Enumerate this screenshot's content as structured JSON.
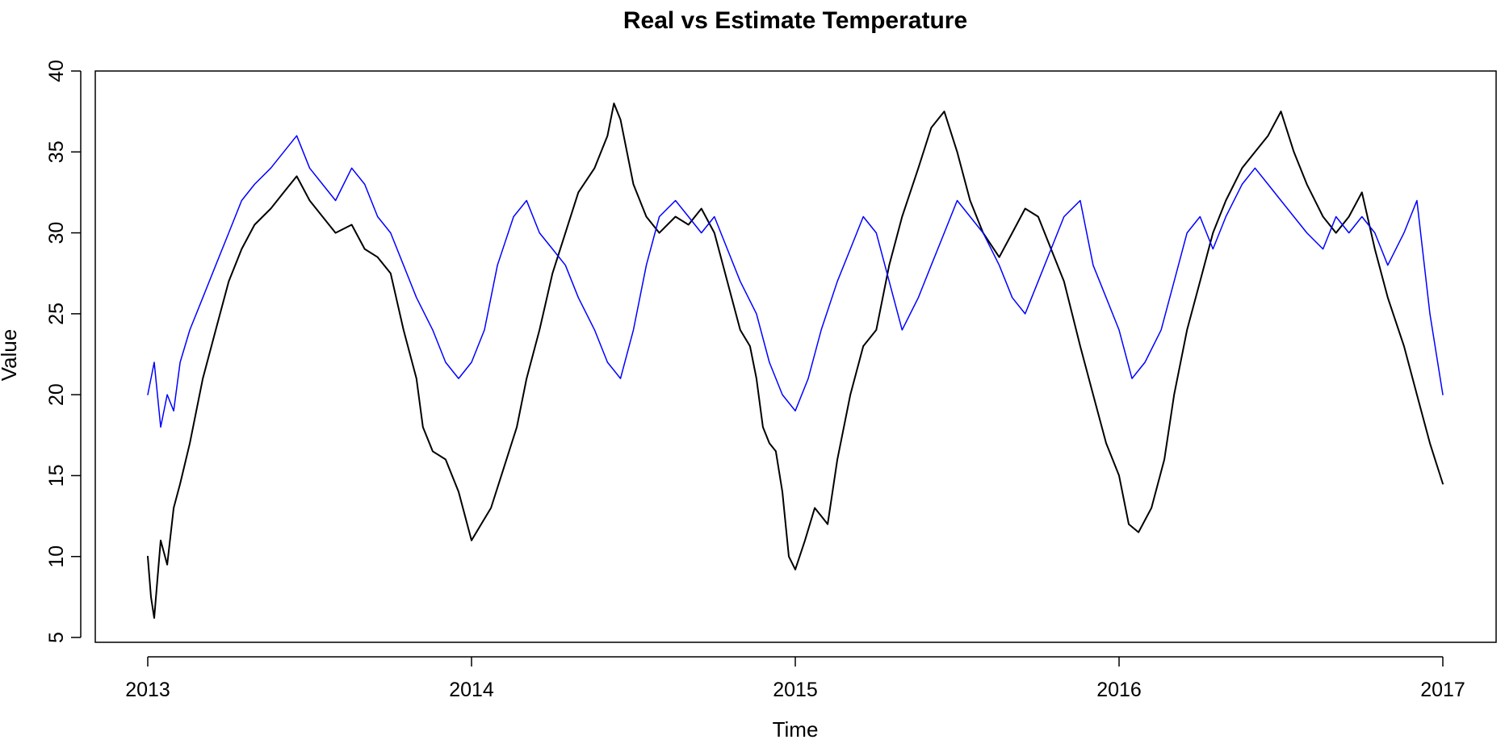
{
  "chart_data": {
    "type": "line",
    "title": "Real vs Estimate Temperature",
    "xlabel": "Time",
    "ylabel": "Value",
    "xlim": [
      2013,
      2017
    ],
    "ylim": [
      5,
      40
    ],
    "x_ticks": [
      "2013",
      "2014",
      "2015",
      "2016",
      "2017"
    ],
    "y_ticks": [
      "5",
      "10",
      "15",
      "20",
      "25",
      "30",
      "35",
      "40"
    ],
    "grid": false,
    "legend": "none",
    "series": [
      {
        "color": "#000000",
        "x": [
          2013.0,
          2013.01,
          2013.02,
          2013.04,
          2013.06,
          2013.08,
          2013.1,
          2013.13,
          2013.17,
          2013.21,
          2013.25,
          2013.29,
          2013.33,
          2013.38,
          2013.42,
          2013.46,
          2013.5,
          2013.54,
          2013.58,
          2013.63,
          2013.67,
          2013.71,
          2013.75,
          2013.79,
          2013.83,
          2013.85,
          2013.88,
          2013.92,
          2013.96,
          2014.0,
          2014.03,
          2014.06,
          2014.1,
          2014.14,
          2014.17,
          2014.21,
          2014.25,
          2014.29,
          2014.33,
          2014.38,
          2014.42,
          2014.44,
          2014.46,
          2014.5,
          2014.54,
          2014.58,
          2014.63,
          2014.67,
          2014.71,
          2014.75,
          2014.79,
          2014.83,
          2014.86,
          2014.88,
          2014.9,
          2014.92,
          2014.94,
          2014.96,
          2014.98,
          2015.0,
          2015.03,
          2015.06,
          2015.1,
          2015.13,
          2015.17,
          2015.21,
          2015.25,
          2015.29,
          2015.33,
          2015.38,
          2015.42,
          2015.46,
          2015.5,
          2015.54,
          2015.58,
          2015.63,
          2015.67,
          2015.71,
          2015.75,
          2015.79,
          2015.83,
          2015.88,
          2015.92,
          2015.96,
          2016.0,
          2016.03,
          2016.06,
          2016.1,
          2016.14,
          2016.17,
          2016.21,
          2016.25,
          2016.29,
          2016.33,
          2016.38,
          2016.42,
          2016.46,
          2016.5,
          2016.54,
          2016.58,
          2016.63,
          2016.67,
          2016.71,
          2016.75,
          2016.79,
          2016.83,
          2016.88,
          2016.92,
          2016.96,
          2017.0
        ],
        "y": [
          10,
          7.5,
          6.2,
          11,
          9.5,
          13,
          14.5,
          17,
          21,
          24,
          27,
          29,
          30.5,
          31.5,
          32.5,
          33.5,
          32,
          31,
          30,
          30.5,
          29,
          28.5,
          27.5,
          24,
          21,
          18,
          16.5,
          16,
          14,
          11,
          12,
          13,
          15.5,
          18,
          21,
          24,
          27.5,
          30,
          32.5,
          34,
          36,
          38,
          37,
          33,
          31,
          30,
          31,
          30.5,
          31.5,
          30,
          27,
          24,
          23,
          21,
          18,
          17,
          16.5,
          14,
          10,
          9.2,
          11,
          13,
          12,
          16,
          20,
          23,
          24,
          28,
          31,
          34,
          36.5,
          37.5,
          35,
          32,
          30,
          28.5,
          30,
          31.5,
          31,
          29,
          27,
          23,
          20,
          17,
          15,
          12,
          11.5,
          13,
          16,
          20,
          24,
          27,
          30,
          32,
          34,
          35,
          36,
          37.5,
          35,
          33,
          31,
          30,
          31,
          32.5,
          29,
          26,
          23,
          20,
          17,
          14.5
        ]
      },
      {
        "color": "#0000ff",
        "x": [
          2013.0,
          2013.02,
          2013.04,
          2013.06,
          2013.08,
          2013.1,
          2013.13,
          2013.17,
          2013.21,
          2013.25,
          2013.29,
          2013.33,
          2013.38,
          2013.42,
          2013.46,
          2013.5,
          2013.54,
          2013.58,
          2013.63,
          2013.67,
          2013.71,
          2013.75,
          2013.79,
          2013.83,
          2013.88,
          2013.92,
          2013.96,
          2014.0,
          2014.04,
          2014.08,
          2014.13,
          2014.17,
          2014.21,
          2014.25,
          2014.29,
          2014.33,
          2014.38,
          2014.42,
          2014.46,
          2014.5,
          2014.54,
          2014.58,
          2014.63,
          2014.67,
          2014.71,
          2014.75,
          2014.79,
          2014.83,
          2014.88,
          2014.92,
          2014.96,
          2015.0,
          2015.04,
          2015.08,
          2015.13,
          2015.17,
          2015.21,
          2015.25,
          2015.29,
          2015.33,
          2015.38,
          2015.42,
          2015.46,
          2015.5,
          2015.54,
          2015.58,
          2015.63,
          2015.67,
          2015.71,
          2015.75,
          2015.79,
          2015.83,
          2015.88,
          2015.92,
          2015.96,
          2016.0,
          2016.04,
          2016.08,
          2016.13,
          2016.17,
          2016.21,
          2016.25,
          2016.29,
          2016.33,
          2016.38,
          2016.42,
          2016.46,
          2016.5,
          2016.54,
          2016.58,
          2016.63,
          2016.67,
          2016.71,
          2016.75,
          2016.79,
          2016.83,
          2016.88,
          2016.92,
          2016.96,
          2017.0
        ],
        "y": [
          20,
          22,
          18,
          20,
          19,
          22,
          24,
          26,
          28,
          30,
          32,
          33,
          34,
          35,
          36,
          34,
          33,
          32,
          34,
          33,
          31,
          30,
          28,
          26,
          24,
          22,
          21,
          22,
          24,
          28,
          31,
          32,
          30,
          29,
          28,
          26,
          24,
          22,
          21,
          24,
          28,
          31,
          32,
          31,
          30,
          31,
          29,
          27,
          25,
          22,
          20,
          19,
          21,
          24,
          27,
          29,
          31,
          30,
          27,
          24,
          26,
          28,
          30,
          32,
          31,
          30,
          28,
          26,
          25,
          27,
          29,
          31,
          32,
          28,
          26,
          24,
          21,
          22,
          24,
          27,
          30,
          31,
          29,
          31,
          33,
          34,
          33,
          32,
          31,
          30,
          29,
          31,
          30,
          31,
          30,
          28,
          30,
          32,
          25,
          20
        ]
      }
    ]
  }
}
